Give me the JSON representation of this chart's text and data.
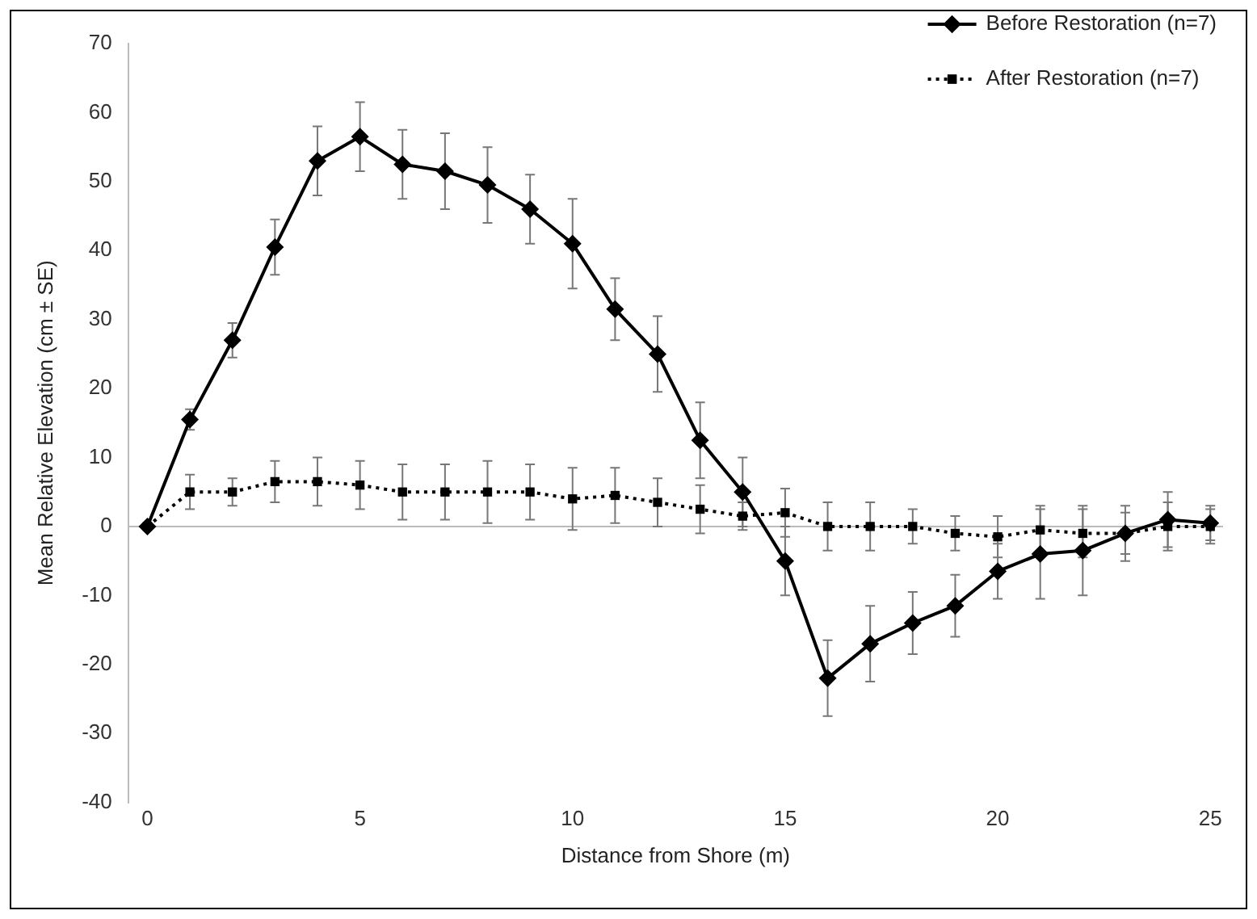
{
  "chart_data": {
    "type": "line",
    "xlabel": "Distance from Shore (m)",
    "ylabel": "Mean Relative Elevation (cm ± SE)",
    "x": [
      0,
      1,
      2,
      3,
      4,
      5,
      6,
      7,
      8,
      9,
      10,
      11,
      12,
      13,
      14,
      15,
      16,
      17,
      18,
      19,
      20,
      21,
      22,
      23,
      24,
      25
    ],
    "xlim": [
      -0.45,
      25.3
    ],
    "xticks": [
      0,
      5,
      10,
      15,
      20,
      25
    ],
    "ylim": [
      -40,
      70
    ],
    "yticks": [
      -40,
      -30,
      -20,
      -10,
      0,
      10,
      20,
      30,
      40,
      50,
      60,
      70
    ],
    "legend": "top right",
    "series": [
      {
        "name": "Before Restoration (n=7)",
        "color": "#000000",
        "marker": "diamond",
        "line_style": "solid",
        "values": [
          0,
          15.5,
          27,
          40.5,
          53,
          56.5,
          52.5,
          51.5,
          49.5,
          46,
          41,
          31.5,
          25,
          12.5,
          5,
          -5,
          -22,
          -17,
          -14,
          -11.5,
          -6.5,
          -4,
          -3.5,
          -1,
          1,
          0.5
        ],
        "errors": [
          null,
          1.5,
          2.5,
          4,
          5,
          5,
          5,
          5.5,
          5.5,
          5,
          6.5,
          4.5,
          5.5,
          5.5,
          5,
          5,
          5.5,
          5.5,
          4.5,
          4.5,
          4,
          6.5,
          6.5,
          4,
          4,
          2.5
        ]
      },
      {
        "name": "After Restoration (n=7)",
        "color": "#000000",
        "marker": "square",
        "line_style": "dotted",
        "values": [
          0,
          5,
          5,
          6.5,
          6.5,
          6,
          5,
          5,
          5,
          5,
          4,
          4.5,
          3.5,
          2.5,
          1.5,
          2,
          0,
          0,
          0,
          -1,
          -1.5,
          -0.5,
          -1,
          -1,
          0,
          0
        ],
        "errors": [
          null,
          2.5,
          2,
          3,
          3.5,
          3.5,
          4,
          4,
          4.5,
          4,
          4.5,
          4,
          3.5,
          3.5,
          2,
          3.5,
          3.5,
          3.5,
          2.5,
          2.5,
          3,
          3.5,
          3.5,
          3,
          3.5,
          2.5
        ]
      }
    ]
  }
}
